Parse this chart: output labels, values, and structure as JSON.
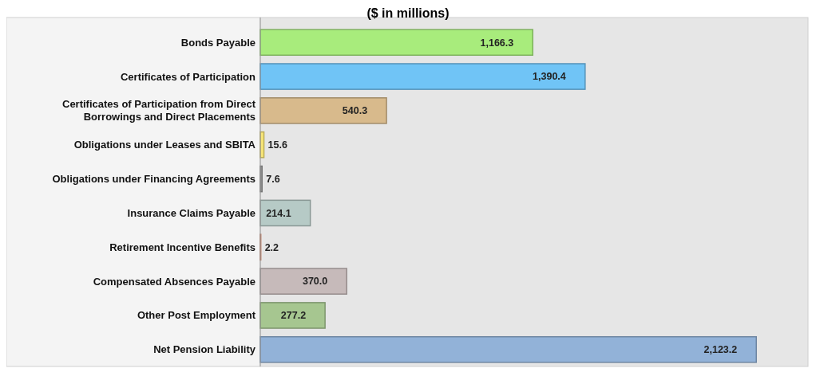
{
  "chart_data": {
    "type": "bar",
    "orientation": "horizontal",
    "title": "($ in millions)",
    "categories": [
      "Bonds  Payable",
      "Certificates of Participation",
      "Certificates of Participation from Direct Borrowings and Direct Placements",
      "Obligations under Leases and SBITA",
      "Obligations under Financing Agreements",
      "Insurance Claims Payable",
      "Retirement Incentive Benefits",
      "Compensated Absences Payable",
      "Other Post Employment",
      "Net Pension Liability"
    ],
    "values": [
      1166.3,
      1390.4,
      540.3,
      15.6,
      7.6,
      214.1,
      2.2,
      370.0,
      277.2,
      2123.2
    ],
    "value_labels": [
      "1,166.3",
      "1,390.4",
      "540.3",
      "15.6",
      "7.6",
      "214.1",
      "2.2",
      "370.0",
      "277.2",
      "2,123.2"
    ],
    "colors": [
      "#a8ec7c",
      "#70c4f6",
      "#d8ba8c",
      "#f8e678",
      "#9c9c9c",
      "#b6cac6",
      "#f49c7c",
      "#c6baba",
      "#a6c690",
      "#92b2d8"
    ]
  }
}
